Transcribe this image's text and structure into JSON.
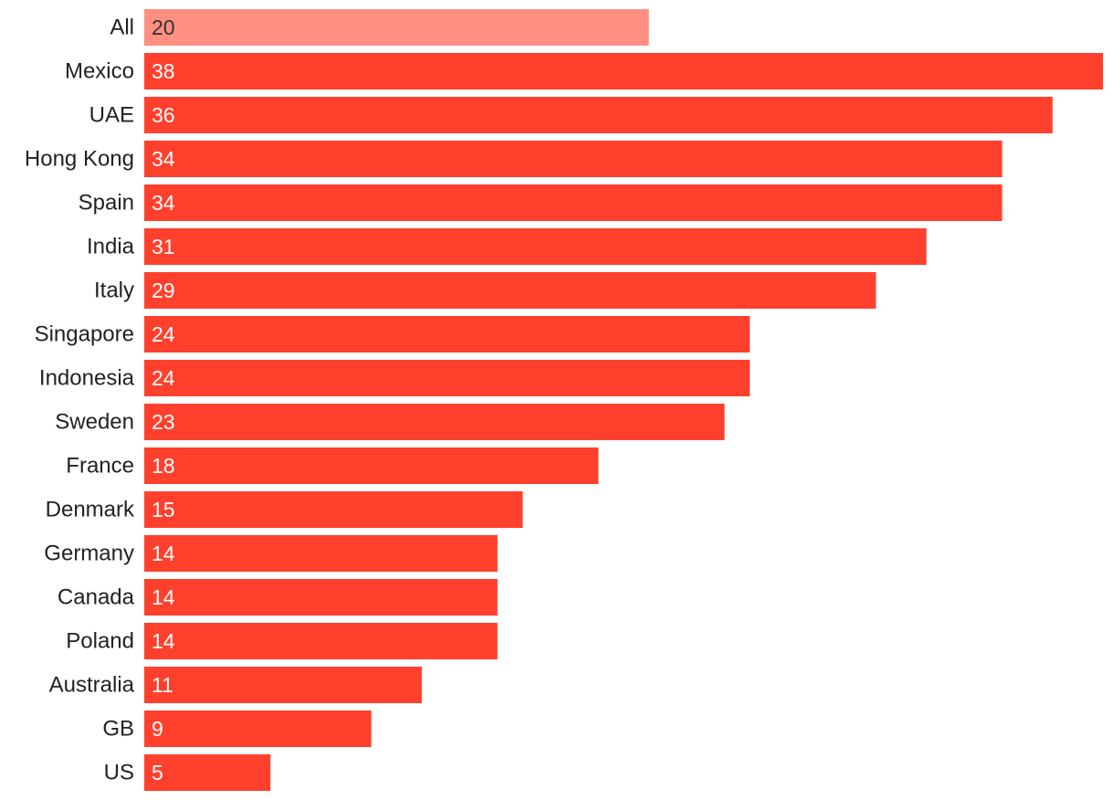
{
  "chart_data": {
    "type": "bar",
    "orientation": "horizontal",
    "title": "",
    "xlabel": "",
    "ylabel": "",
    "categories": [
      "All",
      "Mexico",
      "UAE",
      "Hong Kong",
      "Spain",
      "India",
      "Italy",
      "Singapore",
      "Indonesia",
      "Sweden",
      "France",
      "Denmark",
      "Germany",
      "Canada",
      "Poland",
      "Australia",
      "GB",
      "US"
    ],
    "values": [
      20,
      38,
      36,
      34,
      34,
      31,
      29,
      24,
      24,
      23,
      18,
      15,
      14,
      14,
      14,
      11,
      9,
      5
    ],
    "xlim": [
      0,
      38
    ],
    "grid": false,
    "legend": "none",
    "colors": {
      "highlight_bar": "#ff8f80",
      "highlight_label": "#333333",
      "bar": "#ff402d",
      "value_label": "#ffffff",
      "category_label": "#222222"
    },
    "highlight_index": 0
  }
}
